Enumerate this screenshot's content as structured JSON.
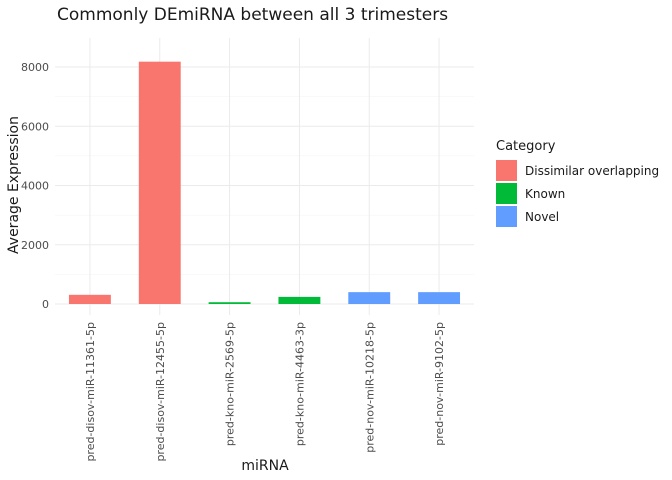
{
  "chart_data": {
    "type": "bar",
    "title": "Commonly DEmiRNA between all 3 trimesters",
    "xlabel": "miRNA",
    "ylabel": "Average Expression",
    "categories": [
      "pred-disov-miR-11361-5p",
      "pred-disov-miR-12455-5p",
      "pred-kno-miR-2569-5p",
      "pred-kno-miR-4463-3p",
      "pred-nov-miR-10218-5p",
      "pred-nov-miR-9102-5p"
    ],
    "values": [
      310,
      8180,
      60,
      240,
      400,
      400
    ],
    "bar_category": [
      "Dissimilar overlapping",
      "Dissimilar overlapping",
      "Known",
      "Known",
      "Novel",
      "Novel"
    ],
    "ylim": [
      0,
      8600
    ],
    "yticks": [
      0,
      2000,
      4000,
      6000,
      8000
    ],
    "grid": true,
    "legend": {
      "title": "Category",
      "position": "right",
      "entries": [
        {
          "label": "Dissimilar overlapping",
          "color": "#F8766D"
        },
        {
          "label": "Known",
          "color": "#00BA38"
        },
        {
          "label": "Novel",
          "color": "#619CFF"
        }
      ]
    }
  }
}
